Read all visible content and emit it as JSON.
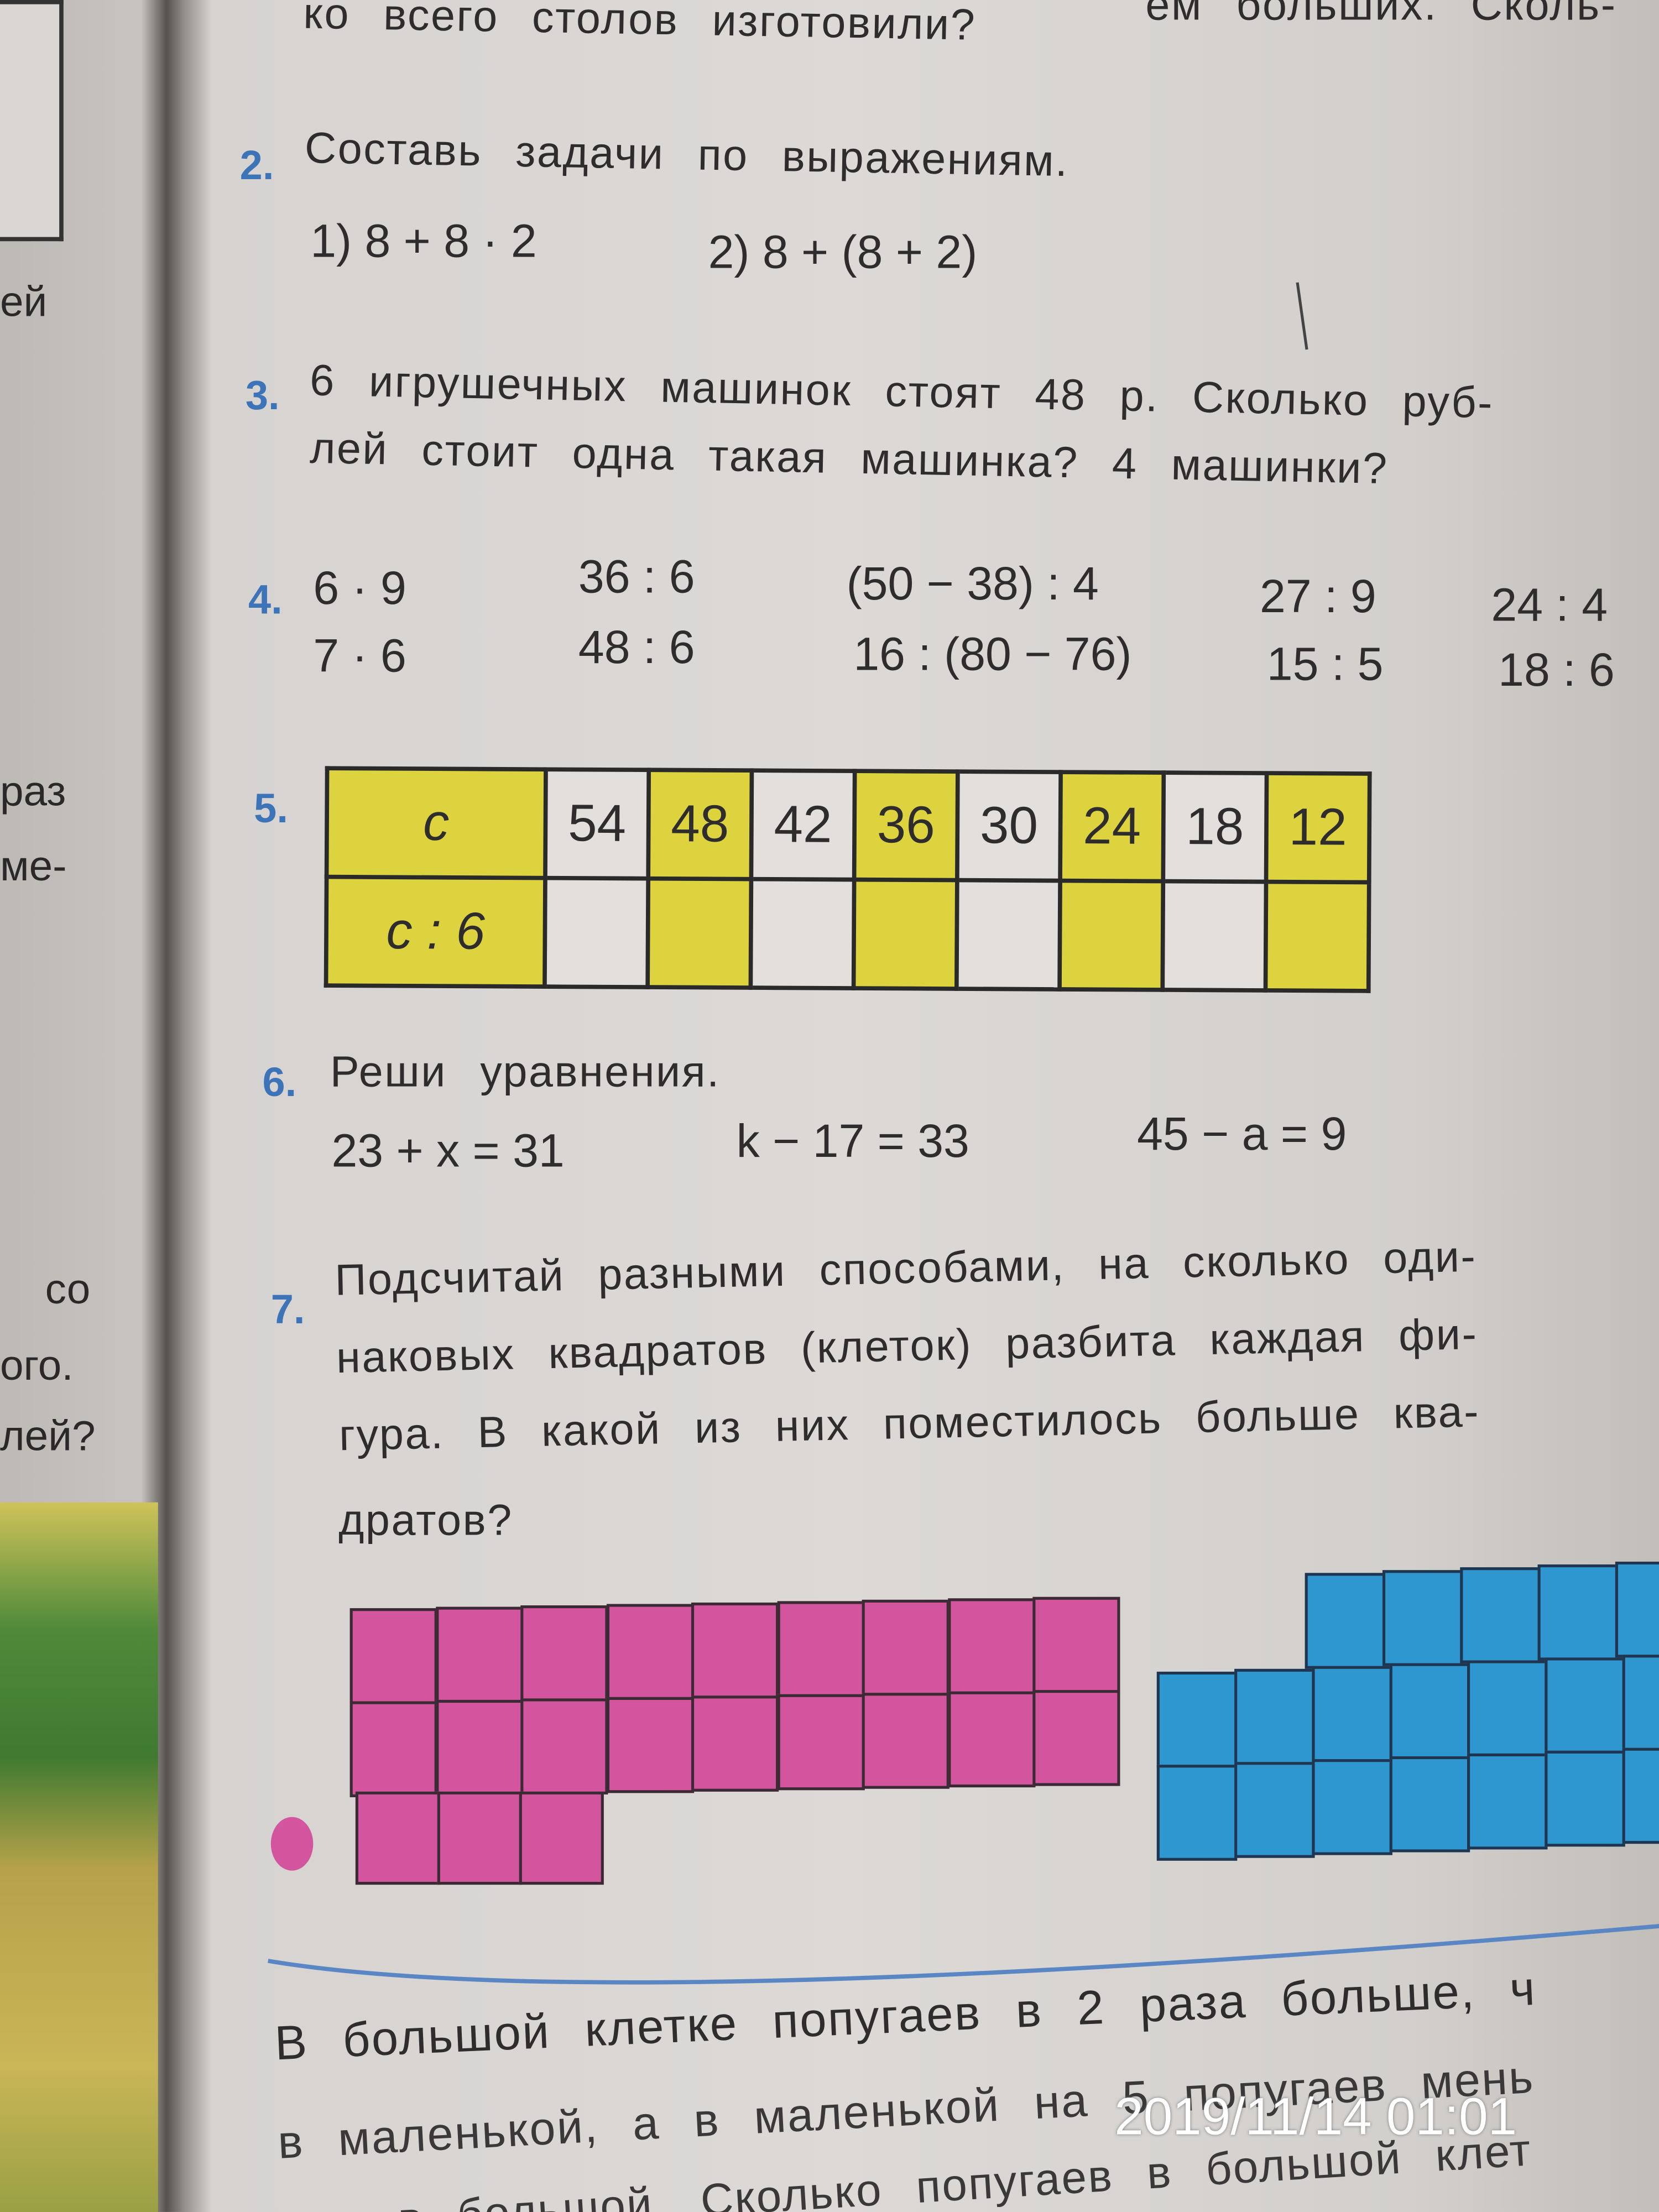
{
  "left_page": {
    "fragments": [
      "ей",
      "раз",
      "ме-",
      "со",
      "ого.",
      "лей?"
    ]
  },
  "top": {
    "line1_right": "ем больших. Сколь-",
    "line2": "ко всего столов изготовили?"
  },
  "task2": {
    "number": "2.",
    "text": "Составь задачи по выражениям.",
    "expr1": "1)  8 + 8 · 2",
    "expr2": "2)  8 + (8 + 2)"
  },
  "task3": {
    "number": "3.",
    "lines": [
      "6 игрушечных машинок стоят 48 р. Сколько руб-",
      "лей стоит одна такая машинка? 4 машинки?"
    ]
  },
  "task4": {
    "number": "4.",
    "columns": [
      [
        "6 · 9",
        "7 · 6"
      ],
      [
        "36 : 6",
        "48 : 6"
      ],
      [
        "(50 − 38) : 4",
        "16 : (80 − 76)"
      ],
      [
        "27 : 9",
        "15 : 5"
      ],
      [
        "24 : 4",
        "18 : 6"
      ]
    ]
  },
  "task5": {
    "number": "5.",
    "row_headers": [
      "c",
      "c : 6"
    ],
    "values": [
      "54",
      "48",
      "42",
      "36",
      "30",
      "24",
      "18",
      "12"
    ],
    "answers": [
      "",
      "",
      "",
      "",
      "",
      "",
      "",
      ""
    ]
  },
  "task6": {
    "number": "6.",
    "text": "Реши уравнения.",
    "equations": [
      "23 + x = 31",
      "k − 17 = 33",
      "45 − a = 9"
    ]
  },
  "task7": {
    "number": "7.",
    "lines": [
      "Подсчитай разными способами, на сколько оди-",
      "наковых квадратов (клеток) разбита каждая фи-",
      "гура. В какой из них поместилось больше ква-",
      "дратов?"
    ]
  },
  "bottom": {
    "lines": [
      "В большой клетке попугаев в 2 раза больше, ч",
      "в маленькой, а в маленькой на 5 попугаев мень",
      "чем в большой. Сколько попугаев в большой клет"
    ]
  },
  "timestamp": "2019/11/14  01:01",
  "colors": {
    "highlight_yellow": "#ddd33e",
    "pink_figure": "#d2559d",
    "blue_figure": "#2f97cf",
    "task_number": "#3d74b8",
    "pen_line": "#5a86c4"
  }
}
